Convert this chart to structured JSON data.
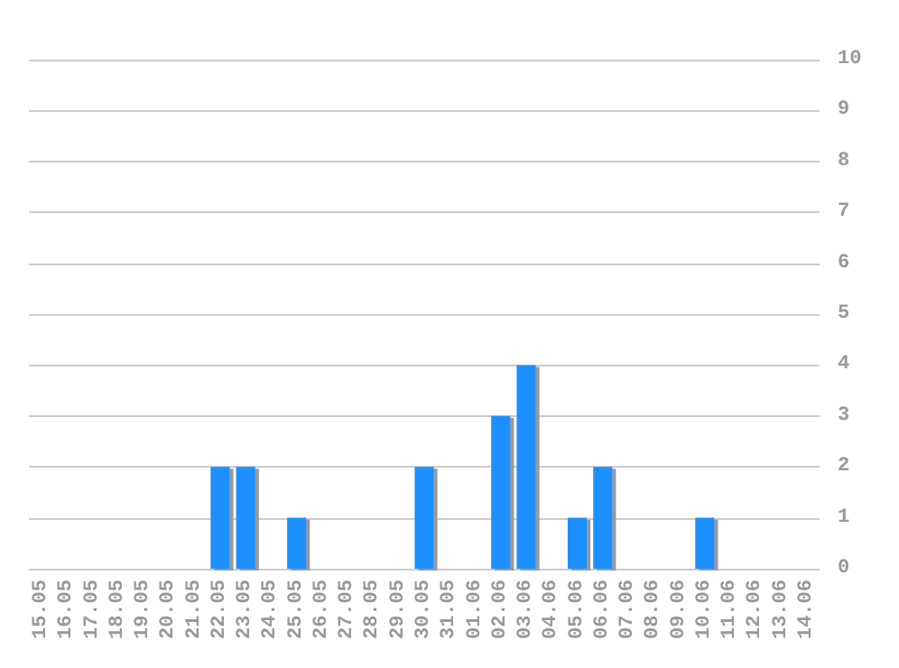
{
  "chart_data": {
    "type": "bar",
    "categories": [
      "15.05",
      "16.05",
      "17.05",
      "18.05",
      "19.05",
      "20.05",
      "21.05",
      "22.05",
      "23.05",
      "24.05",
      "25.05",
      "26.05",
      "27.05",
      "28.05",
      "29.05",
      "30.05",
      "31.05",
      "01.06",
      "02.06",
      "03.06",
      "04.06",
      "05.06",
      "06.06",
      "07.06",
      "08.06",
      "09.06",
      "10.06",
      "11.06",
      "12.06",
      "13.06",
      "14.06"
    ],
    "values": [
      0,
      0,
      0,
      0,
      0,
      0,
      0,
      2,
      2,
      0,
      1,
      0,
      0,
      0,
      0,
      2,
      0,
      0,
      3,
      4,
      0,
      1,
      2,
      0,
      0,
      0,
      1,
      0,
      0,
      0,
      0
    ],
    "color": "#1e90ff",
    "ylim": [
      0,
      10
    ],
    "yticks": [
      0,
      1,
      2,
      3,
      4,
      5,
      6,
      7,
      8,
      9,
      10
    ],
    "grid": "y"
  }
}
